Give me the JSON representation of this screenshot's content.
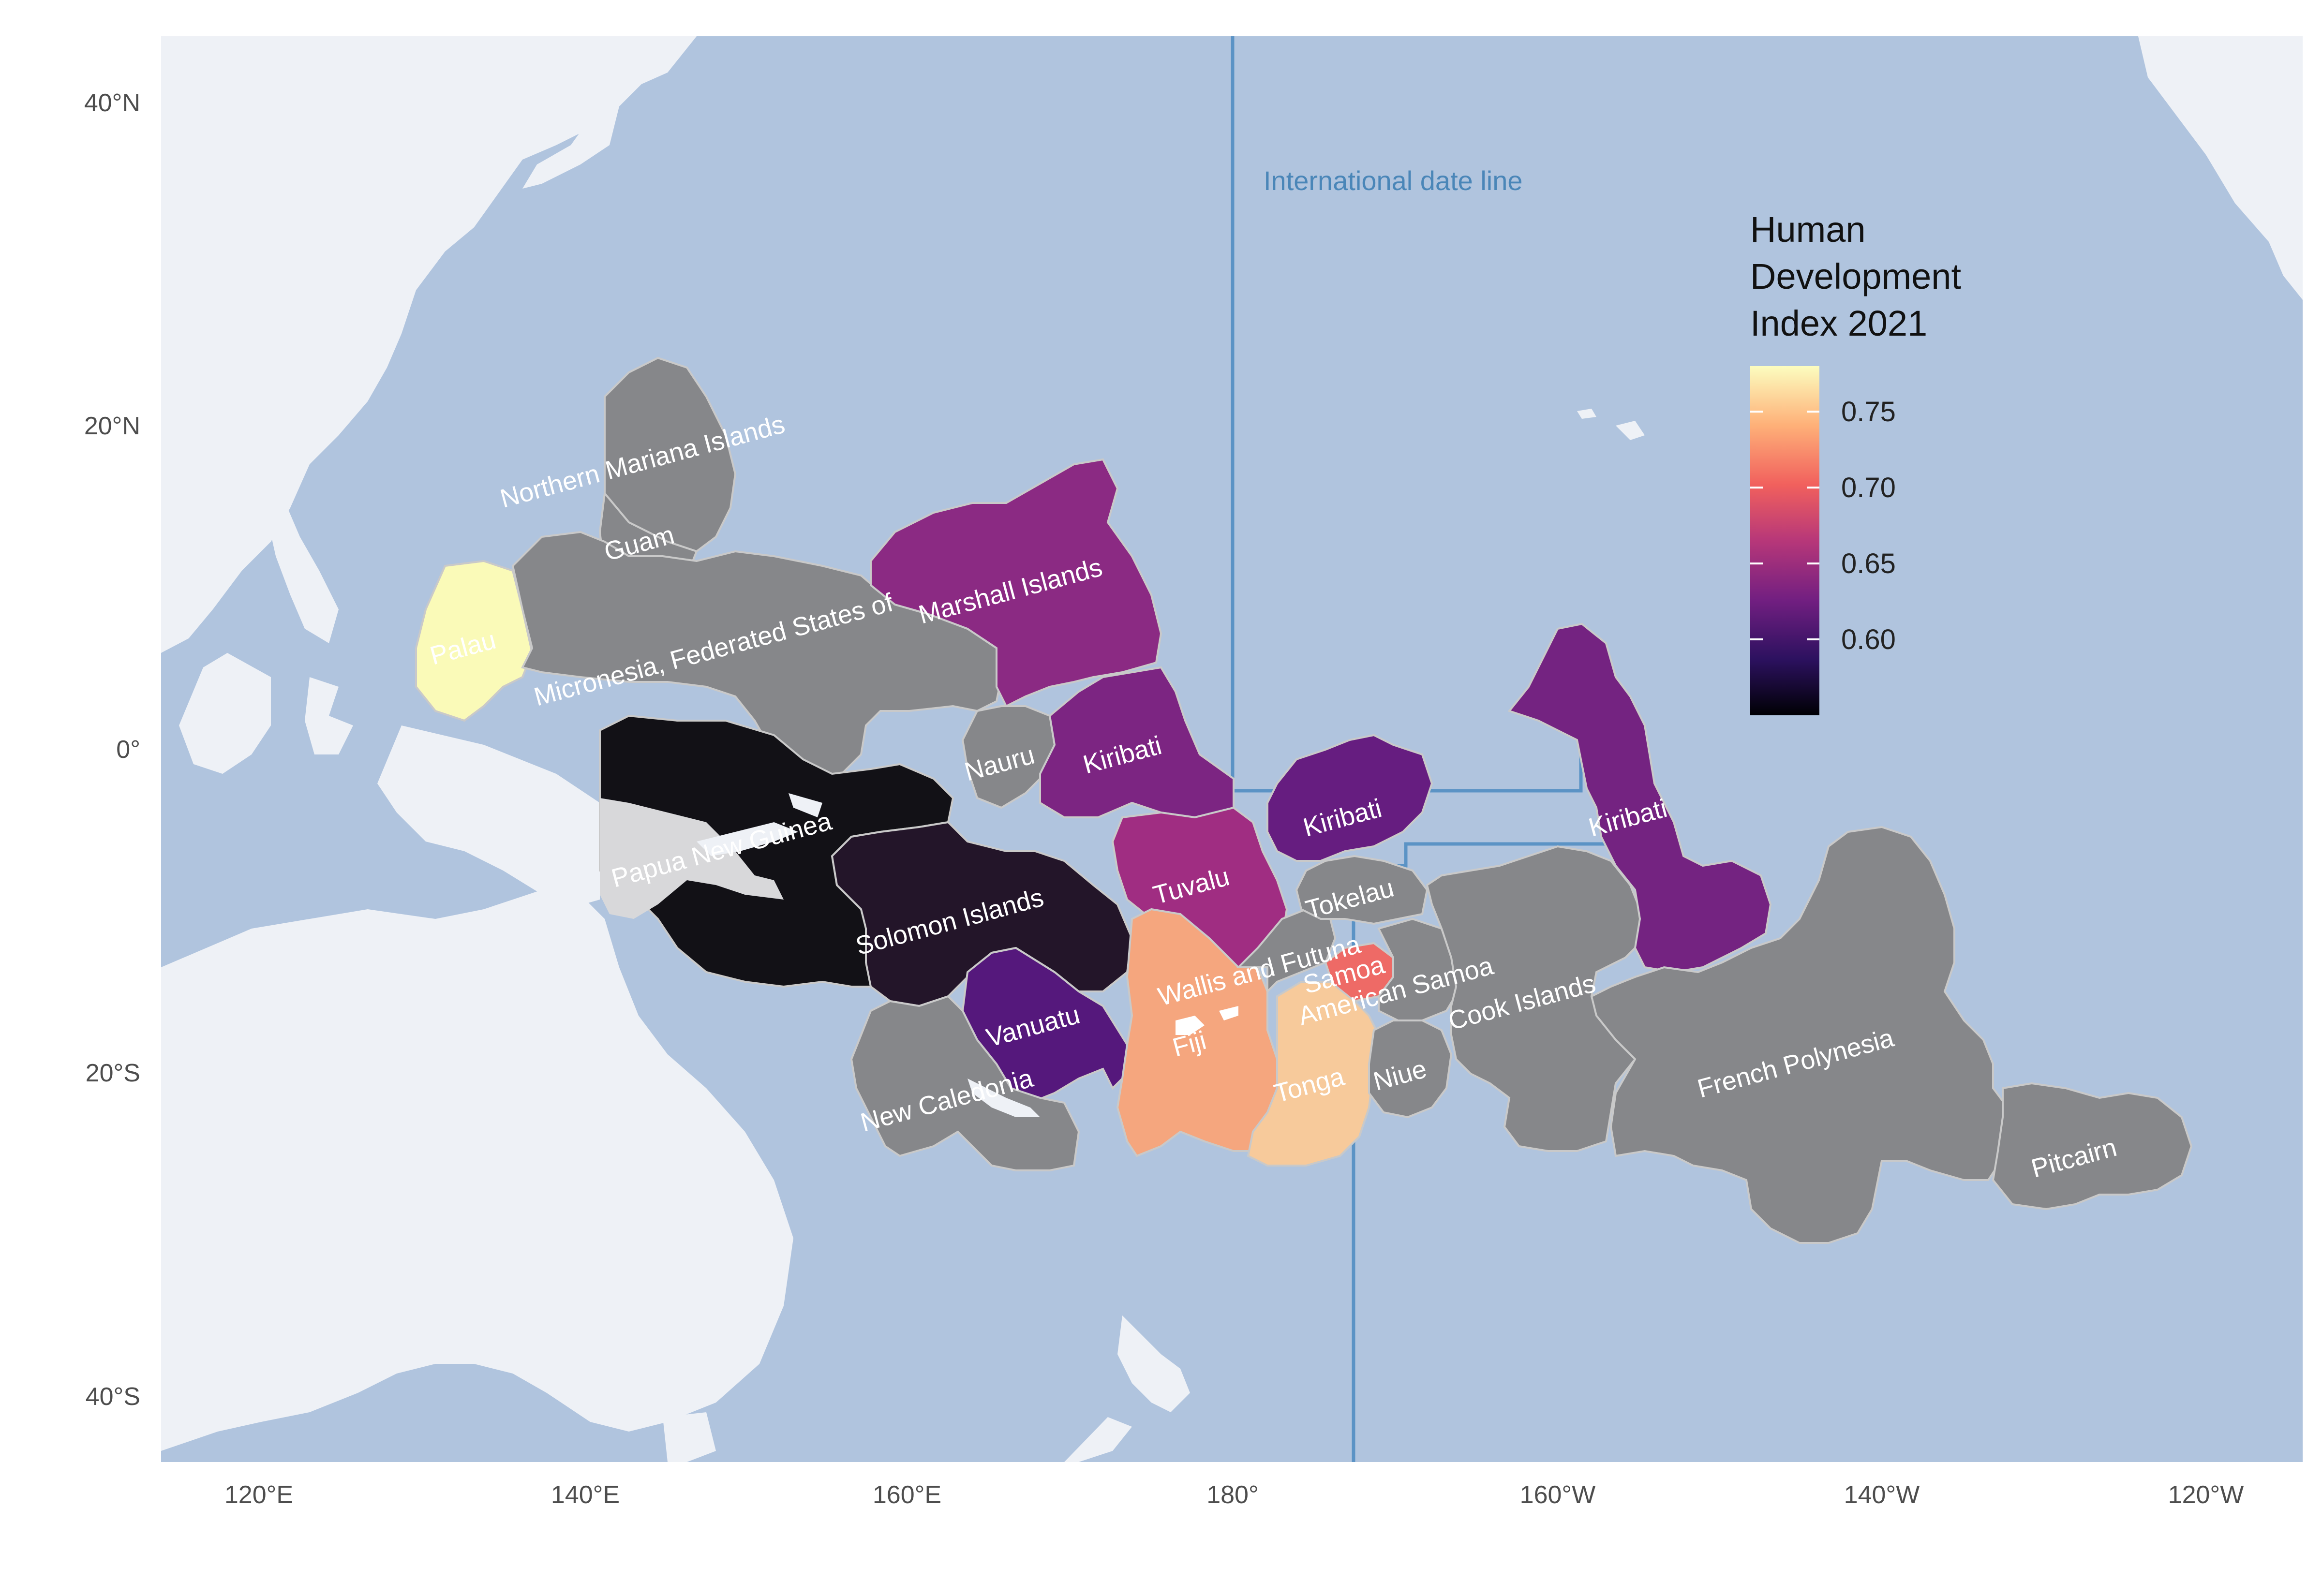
{
  "map": {
    "annotation": "International date line",
    "legend": {
      "title_lines": [
        "Human",
        "Development",
        "Index 2021"
      ],
      "ticks": [
        "0.75",
        "0.70",
        "0.65",
        "0.60"
      ],
      "tick_values": [
        0.75,
        0.7,
        0.65,
        0.6
      ],
      "min": 0.55,
      "max": 0.78,
      "colors": [
        "#000004",
        "#2c115f",
        "#721f81",
        "#b73779",
        "#f1605d",
        "#feb078",
        "#fcfdbf"
      ]
    },
    "y_axis_ticks": [
      "40°N",
      "20°N",
      "0°",
      "20°S",
      "40°S"
    ],
    "x_axis_ticks": [
      "120°E",
      "140°E",
      "160°E",
      "180°",
      "160°W",
      "140°W",
      "120°W"
    ],
    "colors": {
      "ocean": "#b0c4de",
      "land": "#eef1f6",
      "no_data": "#86878a",
      "idl_line": "#5b93c5"
    },
    "regions": [
      {
        "name": "Northern Mariana Islands",
        "hdi": null
      },
      {
        "name": "Guam",
        "hdi": null
      },
      {
        "name": "Palau",
        "hdi": 0.767
      },
      {
        "name": "Micronesia, Federated States of",
        "hdi": null
      },
      {
        "name": "Marshall Islands",
        "hdi": 0.639
      },
      {
        "name": "Nauru",
        "hdi": null
      },
      {
        "name": "Kiribati",
        "hdi": 0.624
      },
      {
        "name": "Papua New Guinea",
        "hdi": 0.558
      },
      {
        "name": "Solomon Islands",
        "hdi": 0.564
      },
      {
        "name": "Tuvalu",
        "hdi": 0.641
      },
      {
        "name": "Vanuatu",
        "hdi": 0.607
      },
      {
        "name": "New Caledonia",
        "hdi": null
      },
      {
        "name": "Fiji",
        "hdi": 0.73
      },
      {
        "name": "Tonga",
        "hdi": 0.745
      },
      {
        "name": "Samoa",
        "hdi": 0.707
      },
      {
        "name": "Wallis and Futuna",
        "hdi": null
      },
      {
        "name": "American Samoa",
        "hdi": null
      },
      {
        "name": "Tokelau",
        "hdi": null
      },
      {
        "name": "Niue",
        "hdi": null
      },
      {
        "name": "Cook Islands",
        "hdi": null
      },
      {
        "name": "French Polynesia",
        "hdi": null
      },
      {
        "name": "Pitcairn",
        "hdi": null
      }
    ]
  }
}
